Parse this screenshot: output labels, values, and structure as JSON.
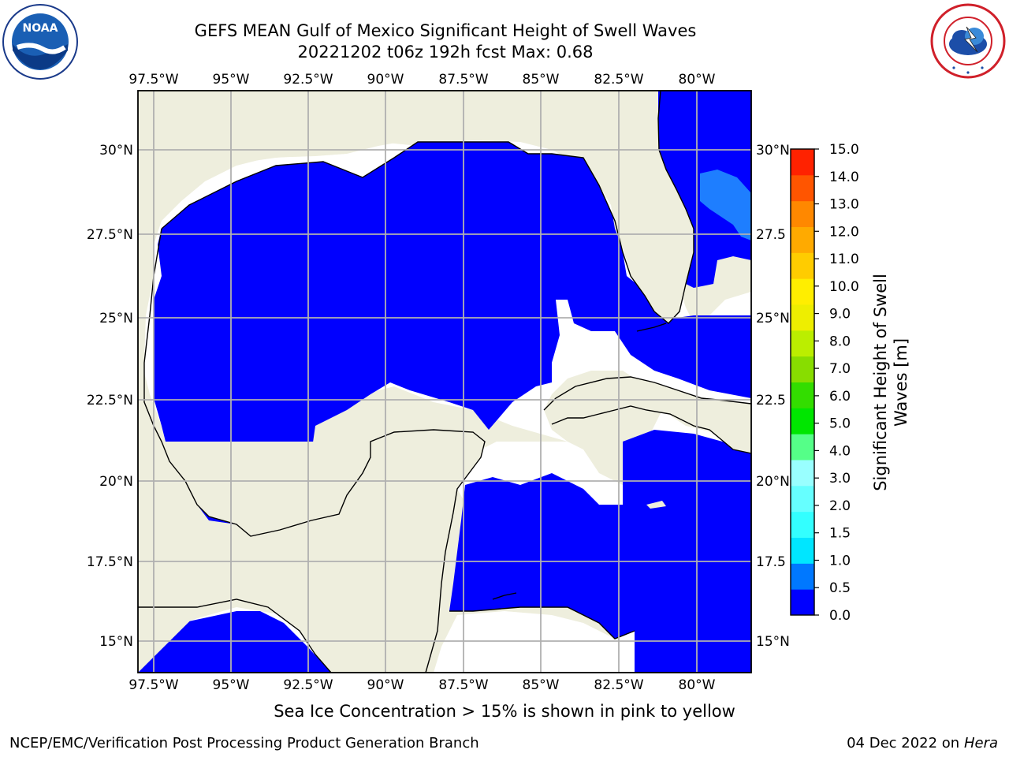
{
  "title": {
    "line1": "GEFS MEAN Gulf of Mexico Significant Height of Swell Waves",
    "line2": "20221202 t06z 192h fcst   Max: 0.68"
  },
  "map": {
    "lon_labels": [
      "97.5°W",
      "95°W",
      "92.5°W",
      "90°W",
      "87.5°W",
      "85°W",
      "82.5°W",
      "80°W"
    ],
    "lat_labels": [
      "30°N",
      "27.5°N",
      "25°N",
      "22.5°N",
      "20°N",
      "17.5°N",
      "15°N"
    ],
    "lat_labels_right": [
      "30°N",
      "27.5",
      "25°N",
      "22.5",
      "20°N",
      "17.5",
      "15°N"
    ],
    "colors": {
      "ocean": "#0000ff",
      "land": "#eeeedd",
      "grid": "#b0b0b0",
      "open": "#ffffff",
      "swell_0_5": "#1e7eff"
    }
  },
  "colorbar": {
    "label_line1": "Significant Height of Swell",
    "label_line2": "Waves [m]",
    "ticks": [
      "0.0",
      "0.5",
      "1.0",
      "1.5",
      "2.0",
      "3.0",
      "4.0",
      "5.0",
      "6.0",
      "7.0",
      "8.0",
      "9.0",
      "10.0",
      "11.0",
      "12.0",
      "13.0",
      "14.0",
      "15.0"
    ],
    "colors": [
      "#0000ff",
      "#0078ff",
      "#00e6ff",
      "#33ffff",
      "#66ffff",
      "#99ffff",
      "#55ff88",
      "#00e600",
      "#33dd00",
      "#88dd00",
      "#bbee00",
      "#eeee00",
      "#ffee00",
      "#ffcc00",
      "#ffaa00",
      "#ff8800",
      "#ff5500",
      "#ff2200"
    ]
  },
  "note": "Sea Ice Concentration > 15% is shown in pink to yellow",
  "credit_left": "NCEP/EMC/Verification Post Processing Product Generation Branch",
  "credit_right_date": "04 Dec 2022 on",
  "credit_right_host": "Hera",
  "logos": {
    "left_text": "NOAA",
    "right_text": "NATIONAL WEATHER SERVICE"
  }
}
